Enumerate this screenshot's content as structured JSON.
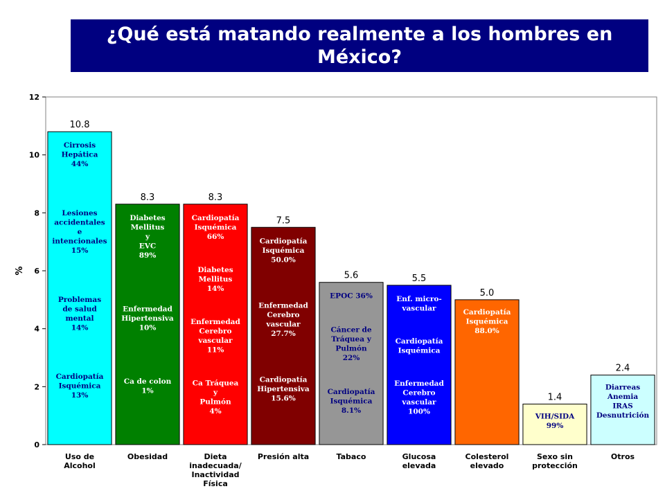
{
  "title": "¿Qué está matando realmente a los hombres en México?",
  "chart_data": {
    "type": "bar",
    "ylabel": "%",
    "xlabel": "",
    "ylim": [
      0,
      12
    ],
    "yticks": [
      0,
      2,
      4,
      6,
      8,
      10,
      12
    ],
    "grid": false,
    "legend": "none",
    "categories": [
      [
        "Uso de",
        "Alcohol"
      ],
      [
        "Obesidad"
      ],
      [
        "Dieta",
        "inadecuada/",
        "Inactividad",
        "Física"
      ],
      [
        "Presión alta"
      ],
      [
        "Tabaco"
      ],
      [
        "Glucosa",
        "elevada"
      ],
      [
        "Colesterol",
        "elevado"
      ],
      [
        "Sexo sin",
        "protección"
      ],
      [
        "Otros"
      ]
    ],
    "values": [
      10.8,
      8.3,
      8.3,
      7.5,
      5.6,
      5.5,
      5.0,
      1.4,
      2.4
    ],
    "value_labels": [
      "10.8",
      "8.3",
      "8.3",
      "7.5",
      "5.6",
      "5.5",
      "5.0",
      "1.4",
      "2.4"
    ],
    "colors": [
      "#00ffff",
      "#008000",
      "#ff0000",
      "#800000",
      "#969696",
      "#0000ff",
      "#ff6600",
      "#ffffcc",
      "#ccffff"
    ],
    "annotation_colors": [
      "#000080",
      "#ffffff",
      "#ffffff",
      "#ffffff",
      "#000080",
      "#ffffff",
      "#ffffff",
      "#000080",
      "#000080"
    ],
    "annotations": [
      [
        [
          "Cirrosis",
          "Hepática",
          "44%"
        ],
        [
          "Lesiones",
          "accidentales",
          "e",
          "intencionales",
          "15%"
        ],
        [
          "Problemas",
          "de salud",
          "mental",
          "14%"
        ],
        [
          "Cardiopatía",
          "Isquémica",
          "13%"
        ]
      ],
      [
        [
          "Diabetes",
          "Mellitus",
          "y",
          "EVC",
          "89%"
        ],
        [
          "Enfermedad",
          "Hipertensiva",
          "10%"
        ],
        [
          "Ca de colon",
          "1%"
        ]
      ],
      [
        [
          "Cardiopatía",
          "Isquémica",
          "66%"
        ],
        [
          "Diabetes",
          "Mellitus",
          "14%"
        ],
        [
          "Enfermedad",
          "Cerebro",
          "vascular",
          "11%"
        ],
        [
          "Ca Tráquea",
          "y",
          "Pulmón",
          "4%"
        ]
      ],
      [
        [
          "Cardiopatía",
          "Isquémica",
          "50.0%"
        ],
        [
          "Enfermedad",
          "Cerebro",
          "vascular",
          "27.7%"
        ],
        [
          "Cardiopatía",
          "Hipertensiva",
          "15.6%"
        ]
      ],
      [
        [
          "EPOC 36%"
        ],
        [
          "Cáncer de",
          "Tráquea y",
          "Pulmón",
          "22%"
        ],
        [
          "Cardiopatía",
          "Isquémica",
          "8.1%"
        ]
      ],
      [
        [
          "Enf. micro-",
          "vascular"
        ],
        [
          "Cardiopatía",
          "Isquémica"
        ],
        [
          "Enfermedad",
          "Cerebro",
          "vascular",
          "100%"
        ]
      ],
      [
        [
          "Cardiopatía",
          "Isquémica",
          "88.0%"
        ]
      ],
      [
        [
          "VIH/SIDA",
          "99%"
        ]
      ],
      [
        [
          "Diarreas",
          "Anemia",
          "IRAS",
          "Desnutrición"
        ]
      ]
    ]
  }
}
